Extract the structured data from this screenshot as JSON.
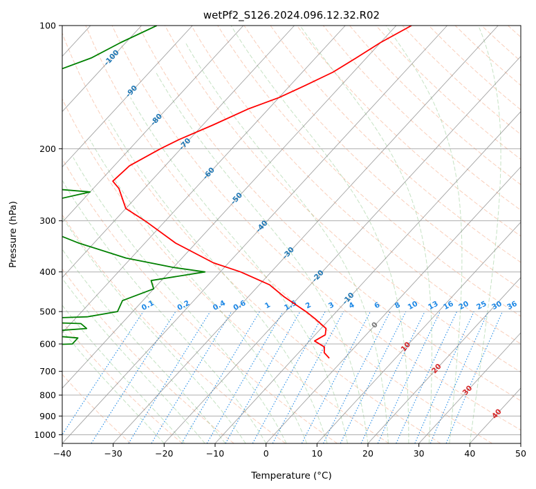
{
  "chart_data": {
    "type": "skew-t",
    "title": "wetPf2_S126.2024.096.12.32.R02",
    "xlabel": "Temperature (°C)",
    "ylabel": "Pressure (hPa)",
    "xlim": [
      -40,
      50
    ],
    "ylim": [
      1050,
      100
    ],
    "y_scale": "log",
    "grid": true,
    "x_ticks": [
      -40,
      -30,
      -20,
      -10,
      0,
      10,
      20,
      30,
      40,
      50
    ],
    "y_ticks": [
      100,
      200,
      300,
      400,
      500,
      600,
      700,
      800,
      900,
      1000
    ],
    "isotherm_labels": [
      {
        "value": -100,
        "text": "-100",
        "pressure": 120
      },
      {
        "value": -90,
        "text": "-90",
        "pressure": 145
      },
      {
        "value": -80,
        "text": "-80",
        "pressure": 170
      },
      {
        "value": -70,
        "text": "-70",
        "pressure": 195
      },
      {
        "value": -60,
        "text": "-60",
        "pressure": 230
      },
      {
        "value": -50,
        "text": "-50",
        "pressure": 265
      },
      {
        "value": -40,
        "text": "-40",
        "pressure": 310
      },
      {
        "value": -30,
        "text": "-30",
        "pressure": 360
      },
      {
        "value": -20,
        "text": "-20",
        "pressure": 410
      },
      {
        "value": -10,
        "text": "-10",
        "pressure": 465
      },
      {
        "value": 0,
        "text": "0",
        "pressure": 540
      },
      {
        "value": 10,
        "text": "10",
        "pressure": 610
      },
      {
        "value": 20,
        "text": "20",
        "pressure": 690
      },
      {
        "value": 30,
        "text": "30",
        "pressure": 780
      },
      {
        "value": 40,
        "text": "40",
        "pressure": 890
      }
    ],
    "mixing_ratio_labels": [
      {
        "value": 0.1,
        "text": "0.1",
        "temp": -23
      },
      {
        "value": 0.2,
        "text": "0.2",
        "temp": -16
      },
      {
        "value": 0.4,
        "text": "0.4",
        "temp": -9
      },
      {
        "value": 0.6,
        "text": "0.6",
        "temp": -5
      },
      {
        "value": 1,
        "text": "1",
        "temp": 0.5
      },
      {
        "value": 1.5,
        "text": "1.5",
        "temp": 5
      },
      {
        "value": 2,
        "text": "2",
        "temp": 8.5
      },
      {
        "value": 3,
        "text": "3",
        "temp": 13
      },
      {
        "value": 4,
        "text": "4",
        "temp": 17
      },
      {
        "value": 6,
        "text": "6",
        "temp": 22
      },
      {
        "value": 8,
        "text": "8",
        "temp": 26
      },
      {
        "value": 10,
        "text": "10",
        "temp": 29
      },
      {
        "value": 13,
        "text": "13",
        "temp": 33
      },
      {
        "value": 16,
        "text": "16",
        "temp": 36
      },
      {
        "value": 20,
        "text": "20",
        "temp": 39
      },
      {
        "value": 25,
        "text": "25",
        "temp": 42.5
      },
      {
        "value": 30,
        "text": "30",
        "temp": 45.5
      },
      {
        "value": 36,
        "text": "36",
        "temp": 48.5
      }
    ],
    "series": [
      {
        "color": "#ff0000",
        "points": [
          {
            "p": 100,
            "t": -47
          },
          {
            "p": 110,
            "t": -50
          },
          {
            "p": 120,
            "t": -52
          },
          {
            "p": 130,
            "t": -54
          },
          {
            "p": 140,
            "t": -57
          },
          {
            "p": 150,
            "t": -60
          },
          {
            "p": 160,
            "t": -64
          },
          {
            "p": 175,
            "t": -68
          },
          {
            "p": 190,
            "t": -72
          },
          {
            "p": 200,
            "t": -74
          },
          {
            "p": 220,
            "t": -77
          },
          {
            "p": 240,
            "t": -77.5
          },
          {
            "p": 250,
            "t": -75
          },
          {
            "p": 280,
            "t": -70
          },
          {
            "p": 300,
            "t": -64
          },
          {
            "p": 340,
            "t": -54
          },
          {
            "p": 380,
            "t": -43
          },
          {
            "p": 400,
            "t": -36
          },
          {
            "p": 430,
            "t": -28
          },
          {
            "p": 460,
            "t": -23
          },
          {
            "p": 500,
            "t": -16
          },
          {
            "p": 520,
            "t": -13
          },
          {
            "p": 550,
            "t": -9
          },
          {
            "p": 570,
            "t": -8
          },
          {
            "p": 590,
            "t": -9
          },
          {
            "p": 610,
            "t": -6
          },
          {
            "p": 630,
            "t": -5
          },
          {
            "p": 650,
            "t": -3
          }
        ]
      },
      {
        "color": "#008000",
        "points": [
          {
            "p": 100,
            "t": -97
          },
          {
            "p": 110,
            "t": -101
          },
          {
            "p": 120,
            "t": -104
          },
          {
            "p": 130,
            "t": -109
          },
          {
            "p": 140,
            "t": -109
          },
          {
            "p": 150,
            "t": -109
          },
          {
            "p": 165,
            "t": -107
          },
          {
            "p": 180,
            "t": -104
          },
          {
            "p": 195,
            "t": -102
          },
          {
            "p": 210,
            "t": -101
          },
          {
            "p": 230,
            "t": -98
          },
          {
            "p": 250,
            "t": -89
          },
          {
            "p": 255,
            "t": -80
          },
          {
            "p": 270,
            "t": -87
          },
          {
            "p": 290,
            "t": -91
          },
          {
            "p": 300,
            "t": -88
          },
          {
            "p": 340,
            "t": -73
          },
          {
            "p": 370,
            "t": -61
          },
          {
            "p": 390,
            "t": -50
          },
          {
            "p": 400,
            "t": -43
          },
          {
            "p": 420,
            "t": -52
          },
          {
            "p": 440,
            "t": -50
          },
          {
            "p": 470,
            "t": -54
          },
          {
            "p": 500,
            "t": -53
          },
          {
            "p": 515,
            "t": -58
          },
          {
            "p": 525,
            "t": -78
          },
          {
            "p": 535,
            "t": -58
          },
          {
            "p": 550,
            "t": -56
          },
          {
            "p": 565,
            "t": -68
          },
          {
            "p": 580,
            "t": -56
          },
          {
            "p": 600,
            "t": -56
          },
          {
            "p": 610,
            "t": -72
          },
          {
            "p": 625,
            "t": -57
          },
          {
            "p": 640,
            "t": -92
          },
          {
            "p": 650,
            "t": -88
          }
        ]
      }
    ]
  }
}
